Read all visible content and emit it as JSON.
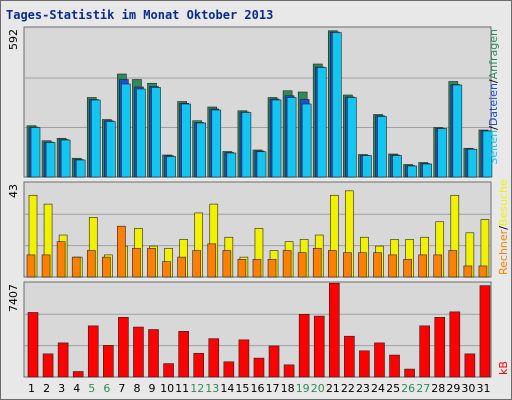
{
  "title": "Tages-Statistik im Monat Oktober 2013",
  "colors": {
    "title": "#0b2b8a",
    "panel_bg": "#d8d8d8",
    "grid": "#a0a0a0",
    "anfragen": "#2e8b57",
    "dateien": "#1a4fd6",
    "seiten": "#13c6f2",
    "besuche": "#f2f200",
    "rechner": "#ff8000",
    "kb": "#ff0000",
    "label_weekend": "#2e8b57",
    "label_weekday": "#000000"
  },
  "chart_data": [
    {
      "type": "bar",
      "panel": "top",
      "ymax_label": "592",
      "right_labels": [
        "Anfragen",
        "Dateien",
        "Seiten"
      ],
      "x": [
        1,
        2,
        3,
        4,
        5,
        6,
        7,
        8,
        9,
        10,
        11,
        12,
        13,
        14,
        15,
        16,
        17,
        18,
        19,
        20,
        21,
        22,
        23,
        24,
        25,
        26,
        27,
        28,
        29,
        30,
        31
      ],
      "series": [
        {
          "name": "Anfragen",
          "values": [
            205,
            145,
            155,
            75,
            318,
            230,
            412,
            390,
            375,
            88,
            302,
            225,
            280,
            102,
            265,
            108,
            318,
            345,
            340,
            452,
            585,
            328,
            90,
            250,
            92,
            50,
            58,
            198,
            382,
            115,
            188
          ]
        },
        {
          "name": "Dateien",
          "values": [
            200,
            140,
            150,
            70,
            310,
            225,
            390,
            360,
            362,
            85,
            295,
            218,
            272,
            98,
            260,
            104,
            312,
            325,
            310,
            440,
            580,
            320,
            87,
            245,
            88,
            46,
            54,
            195,
            370,
            112,
            185
          ]
        },
        {
          "name": "Seiten",
          "values": [
            198,
            138,
            148,
            68,
            308,
            222,
            372,
            352,
            358,
            82,
            292,
            216,
            268,
            96,
            258,
            101,
            308,
            318,
            292,
            438,
            578,
            318,
            86,
            242,
            86,
            44,
            52,
            194,
            368,
            111,
            184
          ]
        }
      ]
    },
    {
      "type": "bar",
      "panel": "middle",
      "ymax_label": "43",
      "right_labels": [
        "Rechner",
        "Besuche"
      ],
      "x": [
        1,
        2,
        3,
        4,
        5,
        6,
        7,
        8,
        9,
        10,
        11,
        12,
        13,
        14,
        15,
        16,
        17,
        18,
        19,
        20,
        21,
        22,
        23,
        24,
        25,
        26,
        27,
        28,
        29,
        30,
        31
      ],
      "series": [
        {
          "name": "Besuche",
          "values": [
            37,
            33,
            19,
            9,
            27,
            10,
            14,
            22,
            14,
            13,
            17,
            29,
            33,
            18,
            9,
            22,
            12,
            16,
            17,
            19,
            37,
            39,
            18,
            14,
            17,
            17,
            18,
            25,
            37,
            20,
            26
          ]
        },
        {
          "name": "Rechner",
          "values": [
            10,
            10,
            16,
            9,
            12,
            9,
            23,
            13,
            13,
            7,
            9,
            12,
            15,
            12,
            8,
            8,
            8,
            12,
            11,
            13,
            12,
            11,
            11,
            11,
            10,
            8,
            10,
            10,
            12,
            5,
            5
          ]
        }
      ]
    },
    {
      "type": "bar",
      "panel": "bottom",
      "ymax_label": "7407",
      "right_labels": [
        "kB"
      ],
      "x": [
        1,
        2,
        3,
        4,
        5,
        6,
        7,
        8,
        9,
        10,
        11,
        12,
        13,
        14,
        15,
        16,
        17,
        18,
        19,
        20,
        21,
        22,
        23,
        24,
        25,
        26,
        27,
        28,
        29,
        30,
        31
      ],
      "series": [
        {
          "name": "kB",
          "values": [
            5300,
            1900,
            2800,
            450,
            4200,
            2600,
            4900,
            4100,
            3900,
            1100,
            3750,
            1950,
            3150,
            1250,
            3050,
            1550,
            2550,
            1000,
            5150,
            5000,
            7700,
            3350,
            2150,
            2800,
            1800,
            650,
            4200,
            4900,
            5350,
            1900,
            7500
          ]
        }
      ]
    }
  ],
  "x_labels": [
    "1",
    "2",
    "3",
    "4",
    "5",
    "6",
    "7",
    "8",
    "9",
    "10",
    "11",
    "12",
    "13",
    "14",
    "15",
    "16",
    "17",
    "18",
    "19",
    "20",
    "21",
    "22",
    "23",
    "24",
    "25",
    "26",
    "27",
    "28",
    "29",
    "30",
    "31"
  ],
  "weekend_days": [
    5,
    6,
    12,
    13,
    19,
    20,
    26,
    27
  ]
}
